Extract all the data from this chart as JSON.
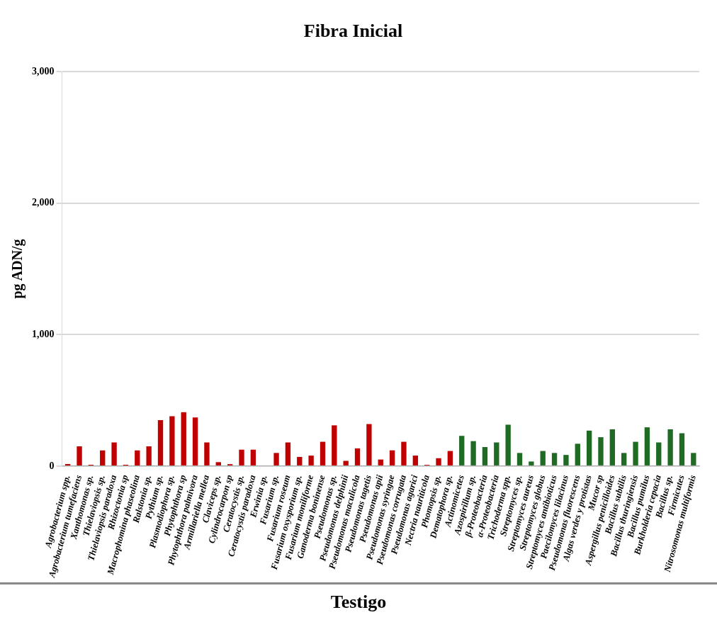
{
  "chart_data": {
    "type": "bar",
    "title": "Fibra Inicial",
    "ylabel": "pg ADN/g",
    "categories": [
      "Agrobacterium spp.",
      "Agrobacterium tumefaciens",
      "Xanthomonas sp.",
      "Thielaviopsis sp.",
      "Thielaviopsis paradoxa",
      "Rhizoctonia sp",
      "Macrophomina phaseolina",
      "Ralstonia sp.",
      "Pythium sp.",
      "Plasmodiophora sp.",
      "Phytophthora sp",
      "Phytophthora palmivora",
      "Armillariella mellea",
      "Claviceps sp.",
      "Cylindrocarpon sp",
      "Ceratocystis sp.",
      "Ceratocystis paradoxa",
      "Erwinia sp.",
      "Fusarium sp.",
      "Fusarium roseum",
      "Fusarium oxysporium sp.",
      "Fusarium moniliforme",
      "Ganoderma boninense",
      "Pseudomonas sp.",
      "Pseudomonas delphinii",
      "Pseudomonas maculicola",
      "Pseudomonas tagetis",
      "Pseudomonas apii",
      "Pseudomonas syringae",
      "Pseudomonas corrugata",
      "Pseudomonas agarici",
      "Nectria nauriticola",
      "Phomopsis sp.",
      "Dematophora sp.",
      "Actinomicetes",
      "Azospirillum sp.",
      "β-Proteobacteria",
      "α-Proteobacteria",
      "Trichoderma spp.",
      "Streptomyces sp.",
      "Streptomyces aureus",
      "Streptomyces globus",
      "Streptomyces antibioticus",
      "Paecilomyces lilacinus",
      "Pseudomonas fluorescens",
      "Algas verdes y protistas",
      "Mucor sp",
      "Aspergillus penicilloides",
      "Bacillus subtilis",
      "Bacillus thuringiensis",
      "Bacillus pumilus",
      "Burkholderia cepacia",
      "Bacillus sp.",
      "Firmicutes",
      "Nitrosomonas multiformis"
    ],
    "values": [
      15,
      150,
      10,
      120,
      180,
      10,
      120,
      150,
      350,
      380,
      410,
      370,
      180,
      30,
      15,
      125,
      125,
      0,
      100,
      180,
      70,
      80,
      185,
      310,
      40,
      135,
      320,
      50,
      120,
      185,
      80,
      10,
      60,
      115,
      230,
      190,
      145,
      180,
      315,
      100,
      35,
      115,
      100,
      85,
      170,
      270,
      220,
      280,
      100,
      185,
      295,
      180,
      280,
      250,
      100
    ],
    "colors": [
      "#c00000",
      "#c00000",
      "#c00000",
      "#c00000",
      "#c00000",
      "#c00000",
      "#c00000",
      "#c00000",
      "#c00000",
      "#c00000",
      "#c00000",
      "#c00000",
      "#c00000",
      "#c00000",
      "#c00000",
      "#c00000",
      "#c00000",
      "#c00000",
      "#c00000",
      "#c00000",
      "#c00000",
      "#c00000",
      "#c00000",
      "#c00000",
      "#c00000",
      "#c00000",
      "#c00000",
      "#c00000",
      "#c00000",
      "#c00000",
      "#c00000",
      "#c00000",
      "#c00000",
      "#c00000",
      "#1f6b24",
      "#1f6b24",
      "#1f6b24",
      "#1f6b24",
      "#1f6b24",
      "#1f6b24",
      "#1f6b24",
      "#1f6b24",
      "#1f6b24",
      "#1f6b24",
      "#1f6b24",
      "#1f6b24",
      "#1f6b24",
      "#1f6b24",
      "#1f6b24",
      "#1f6b24",
      "#1f6b24",
      "#1f6b24",
      "#1f6b24",
      "#1f6b24",
      "#1f6b24"
    ],
    "ylim": [
      0,
      3000
    ],
    "yticks": [
      0,
      {
        "value": 1000,
        "label": "1,000"
      },
      {
        "value": 2000,
        "label": "2,000"
      },
      {
        "value": 3000,
        "label": "3,000"
      }
    ],
    "grid": "y",
    "legend": false,
    "annotations": [
      "Testigo"
    ]
  }
}
